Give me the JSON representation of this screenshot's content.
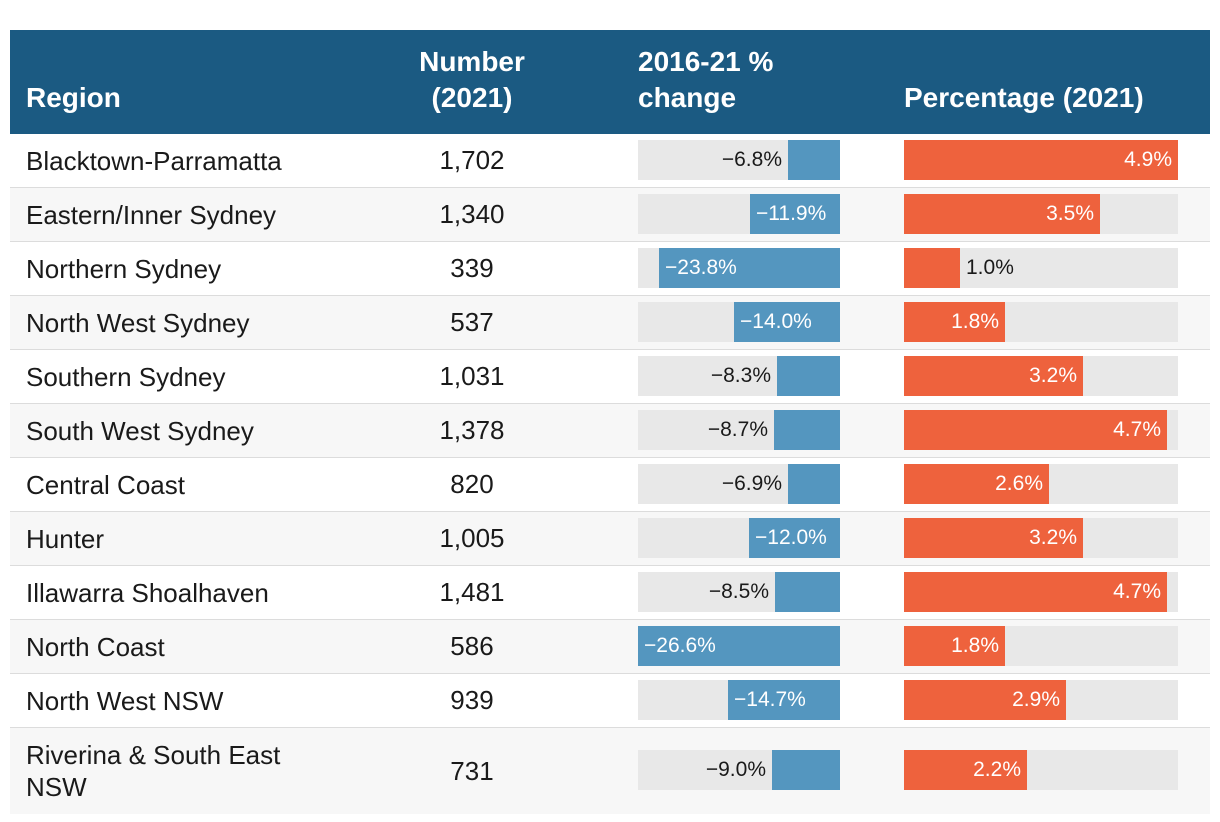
{
  "chart_data": {
    "type": "table",
    "columns": [
      "Region",
      "Number (2021)",
      "2016-21 % change",
      "Percentage (2021)"
    ],
    "header": {
      "region": "Region",
      "number_line1": "Number",
      "number_line2": "(2021)",
      "change_line1": "2016-21 %",
      "change_line2": "change",
      "pct": "Percentage (2021)"
    },
    "change_scale_max": 26.6,
    "pct_scale_max": 4.9,
    "rows": [
      {
        "region": "Blacktown-Parramatta",
        "number": "1,702",
        "change": -6.8,
        "change_label": "−6.8%",
        "pct": 4.9,
        "pct_label": "4.9%"
      },
      {
        "region": "Eastern/Inner Sydney",
        "number": "1,340",
        "change": -11.9,
        "change_label": "−11.9%",
        "pct": 3.5,
        "pct_label": "3.5%"
      },
      {
        "region": "Northern Sydney",
        "number": "339",
        "change": -23.8,
        "change_label": "−23.8%",
        "pct": 1.0,
        "pct_label": "1.0%"
      },
      {
        "region": "North West Sydney",
        "number": "537",
        "change": -14.0,
        "change_label": "−14.0%",
        "pct": 1.8,
        "pct_label": "1.8%"
      },
      {
        "region": "Southern Sydney",
        "number": "1,031",
        "change": -8.3,
        "change_label": "−8.3%",
        "pct": 3.2,
        "pct_label": "3.2%"
      },
      {
        "region": "South West Sydney",
        "number": "1,378",
        "change": -8.7,
        "change_label": "−8.7%",
        "pct": 4.7,
        "pct_label": "4.7%"
      },
      {
        "region": "Central Coast",
        "number": "820",
        "change": -6.9,
        "change_label": "−6.9%",
        "pct": 2.6,
        "pct_label": "2.6%"
      },
      {
        "region": "Hunter",
        "number": "1,005",
        "change": -12.0,
        "change_label": "−12.0%",
        "pct": 3.2,
        "pct_label": "3.2%"
      },
      {
        "region": "Illawarra Shoalhaven",
        "number": "1,481",
        "change": -8.5,
        "change_label": "−8.5%",
        "pct": 4.7,
        "pct_label": "4.7%"
      },
      {
        "region": "North Coast",
        "number": "586",
        "change": -26.6,
        "change_label": "−26.6%",
        "pct": 1.8,
        "pct_label": "1.8%"
      },
      {
        "region": "North West NSW",
        "number": "939",
        "change": -14.7,
        "change_label": "−14.7%",
        "pct": 2.9,
        "pct_label": "2.9%"
      },
      {
        "region": "Riverina & South East NSW",
        "number": "731",
        "change": -9.0,
        "change_label": "−9.0%",
        "pct": 2.2,
        "pct_label": "2.2%"
      }
    ],
    "colors": {
      "header_bg": "#1b5a82",
      "change_bar": "#5496bf",
      "pct_bar": "#ee623d",
      "track": "#e8e8e8"
    }
  }
}
